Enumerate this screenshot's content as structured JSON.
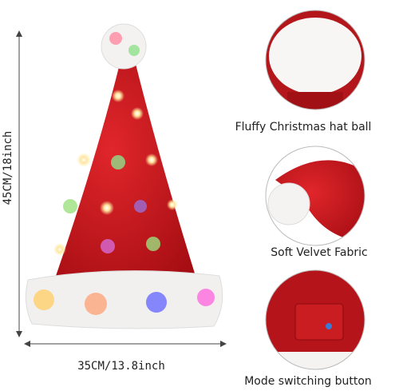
{
  "dimensions": {
    "height": "45CM/18inch",
    "width": "35CM/13.8inch"
  },
  "features": [
    {
      "label": "Fluffy Christmas hat ball"
    },
    {
      "label": "Soft Velvet Fabric"
    },
    {
      "label": "Mode switching button"
    }
  ]
}
